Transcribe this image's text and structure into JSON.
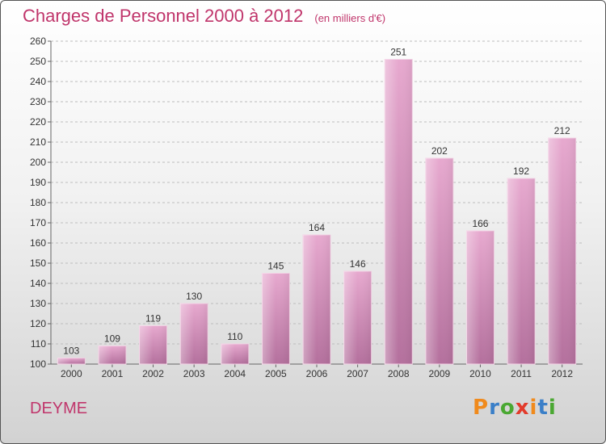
{
  "title": "Charges de Personnel 2000 à 2012",
  "subtitle": "(en milliers d'€)",
  "city": "DEYME",
  "logo": {
    "text": "Proxiti",
    "colors": [
      "#f08a1c",
      "#3a7fc8",
      "#4aa832",
      "#e23b2b",
      "#f08a1c",
      "#3a7fc8",
      "#4aa832"
    ]
  },
  "chart_data": {
    "type": "bar",
    "title": "Charges de Personnel 2000 à 2012",
    "categories": [
      "2000",
      "2001",
      "2002",
      "2003",
      "2004",
      "2005",
      "2006",
      "2007",
      "2008",
      "2009",
      "2010",
      "2011",
      "2012"
    ],
    "values": [
      103,
      109,
      119,
      130,
      110,
      145,
      164,
      146,
      251,
      202,
      166,
      192,
      212
    ],
    "ylim": [
      100,
      260
    ],
    "ytick_step": 10,
    "grid": true,
    "bar_color": "#d887b5"
  }
}
